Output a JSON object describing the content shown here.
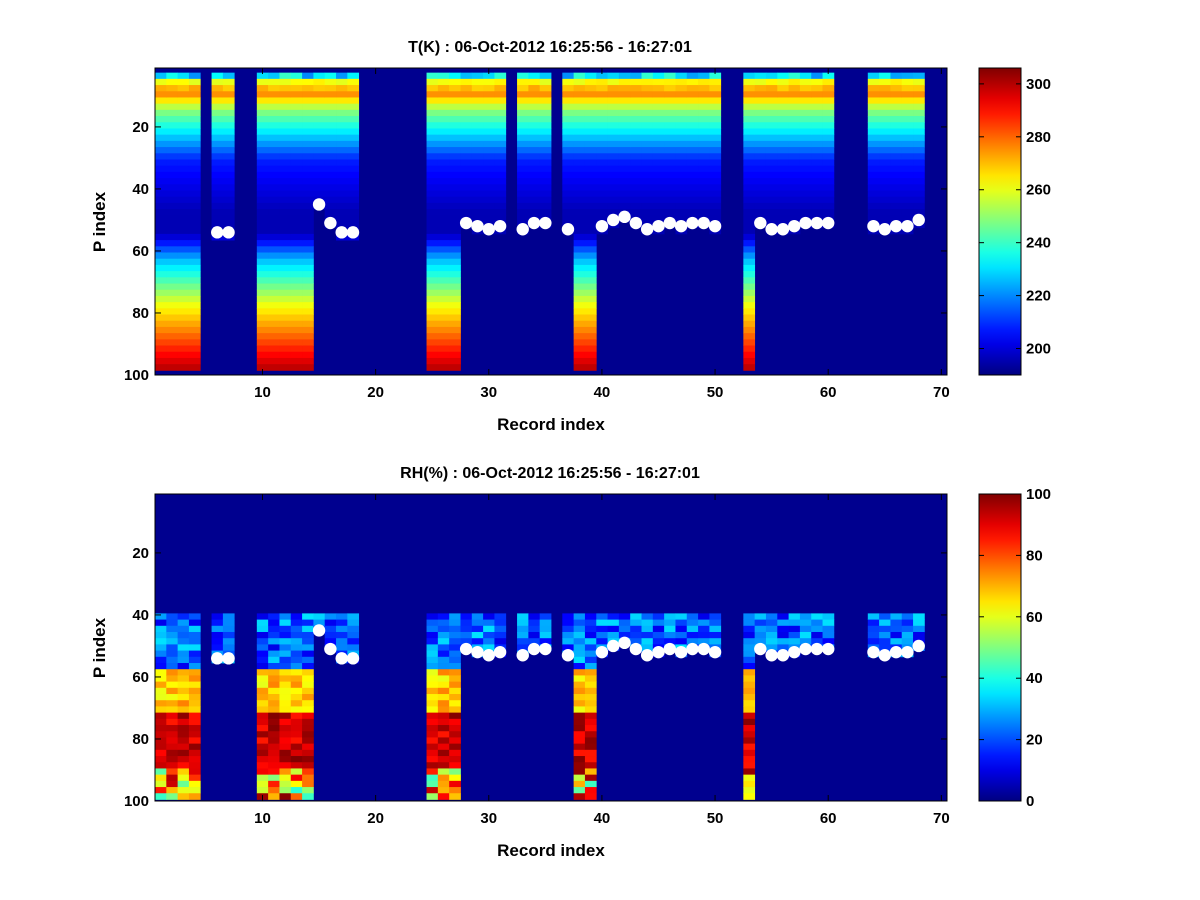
{
  "chart_data": [
    {
      "type": "heatmap",
      "title": "T(K) : 06-Oct-2012 16:25:56 - 16:27:01",
      "xlabel": "Record index",
      "ylabel": "P index",
      "xlim": [
        0.5,
        70.5
      ],
      "ylim": [
        100,
        1
      ],
      "xticks": [
        "10",
        "20",
        "30",
        "40",
        "50",
        "60",
        "70"
      ],
      "yticks": [
        "20",
        "40",
        "60",
        "80",
        "100"
      ],
      "colorbar": {
        "min": 190,
        "max": 306,
        "ticks": [
          "200",
          "220",
          "240",
          "260",
          "280",
          "300"
        ]
      },
      "records_present": [
        1,
        2,
        3,
        4,
        6,
        7,
        10,
        11,
        12,
        13,
        14,
        15,
        16,
        17,
        18,
        25,
        26,
        27,
        28,
        29,
        30,
        31,
        33,
        34,
        35,
        37,
        38,
        39,
        40,
        41,
        42,
        43,
        44,
        45,
        46,
        47,
        48,
        49,
        50,
        53,
        54,
        55,
        56,
        57,
        58,
        59,
        60,
        64,
        65,
        66,
        67,
        68
      ],
      "profile_bottom_index": {
        "1": 98,
        "2": 98,
        "3": 98,
        "4": 98,
        "10": 98,
        "11": 98,
        "12": 98,
        "13": 98,
        "14": 98,
        "25": 98,
        "26": 98,
        "27": 98,
        "38": 98,
        "39": 98,
        "53": 98
      },
      "markers": {
        "x": [
          6,
          7,
          15,
          16,
          17,
          18,
          28,
          29,
          30,
          31,
          33,
          34,
          35,
          37,
          40,
          41,
          42,
          43,
          44,
          45,
          46,
          47,
          48,
          49,
          50,
          54,
          55,
          56,
          57,
          58,
          59,
          60,
          64,
          65,
          66,
          67,
          68
        ],
        "y": [
          54,
          54,
          45,
          51,
          54,
          54,
          51,
          52,
          53,
          52,
          53,
          51,
          51,
          53,
          52,
          50,
          49,
          51,
          53,
          52,
          51,
          52,
          51,
          51,
          52,
          51,
          53,
          53,
          52,
          51,
          51,
          51,
          52,
          53,
          52,
          52,
          50
        ]
      }
    },
    {
      "type": "heatmap",
      "title": "RH(%) : 06-Oct-2012 16:25:56 - 16:27:01",
      "xlabel": "Record index",
      "ylabel": "P index",
      "xlim": [
        0.5,
        70.5
      ],
      "ylim": [
        100,
        1
      ],
      "xticks": [
        "10",
        "20",
        "30",
        "40",
        "50",
        "60",
        "70"
      ],
      "yticks": [
        "20",
        "40",
        "60",
        "80",
        "100"
      ],
      "colorbar": {
        "min": 0,
        "max": 100,
        "ticks": [
          "0",
          "20",
          "40",
          "60",
          "80",
          "100"
        ]
      },
      "markers": {
        "x": [
          6,
          7,
          15,
          16,
          17,
          18,
          28,
          29,
          30,
          31,
          33,
          34,
          35,
          37,
          40,
          41,
          42,
          43,
          44,
          45,
          46,
          47,
          48,
          49,
          50,
          54,
          55,
          56,
          57,
          58,
          59,
          60,
          64,
          65,
          66,
          67,
          68
        ],
        "y": [
          54,
          54,
          45,
          51,
          54,
          54,
          51,
          52,
          53,
          52,
          53,
          51,
          51,
          53,
          52,
          50,
          49,
          51,
          53,
          52,
          51,
          52,
          51,
          51,
          52,
          51,
          53,
          53,
          52,
          51,
          51,
          51,
          52,
          53,
          52,
          52,
          50
        ]
      }
    }
  ]
}
